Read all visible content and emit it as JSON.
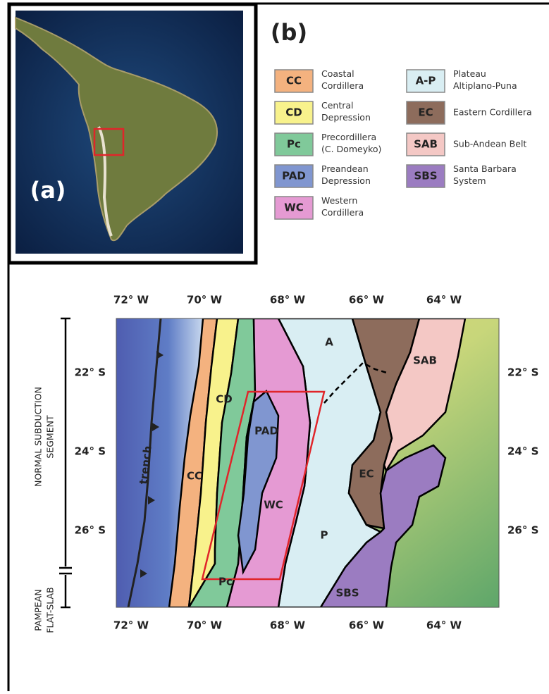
{
  "panel_a": {
    "label": "(a)"
  },
  "panel_b": {
    "label": "(b)",
    "legend": [
      {
        "code": "CC",
        "lines": [
          "Coastal",
          "Cordillera"
        ],
        "color": "#f4b27f"
      },
      {
        "code": "CD",
        "lines": [
          "Central",
          "Depression"
        ],
        "color": "#f8f28c"
      },
      {
        "code": "Pc",
        "lines": [
          "Precordillera",
          "(C. Domeyko)"
        ],
        "color": "#80c99a"
      },
      {
        "code": "PAD",
        "lines": [
          "Preandean",
          "Depression"
        ],
        "color": "#8096d0"
      },
      {
        "code": "WC",
        "lines": [
          "Western",
          "Cordillera"
        ],
        "color": "#e59ad3"
      },
      {
        "code": "A-P",
        "lines": [
          "Plateau",
          "Altiplano-Puna"
        ],
        "color": "#d9eef3"
      },
      {
        "code": "EC",
        "lines": [
          "Eastern Cordillera"
        ],
        "color": "#8d6c5c"
      },
      {
        "code": "SAB",
        "lines": [
          "Sub-Andean Belt"
        ],
        "color": "#f4c8c5"
      },
      {
        "code": "SBS",
        "lines": [
          "Santa Barbara",
          "System"
        ],
        "color": "#9b7cc1"
      }
    ]
  },
  "map": {
    "lon_labels": [
      "72° W",
      "70° W",
      "68° W",
      "66° W",
      "64° W"
    ],
    "lat_labels": [
      "22° S",
      "24° S",
      "26° S"
    ],
    "region_labels": [
      "trench",
      "CC",
      "CD",
      "Pc",
      "PAD",
      "WC",
      "A",
      "P",
      "EC",
      "SAB",
      "SBS"
    ],
    "segments": [
      {
        "lines": [
          "NORMAL SUBDUCTION",
          "SEGMENT"
        ]
      },
      {
        "lines": [
          "PAMPEAN",
          "FLAT-SLAB"
        ]
      }
    ]
  }
}
